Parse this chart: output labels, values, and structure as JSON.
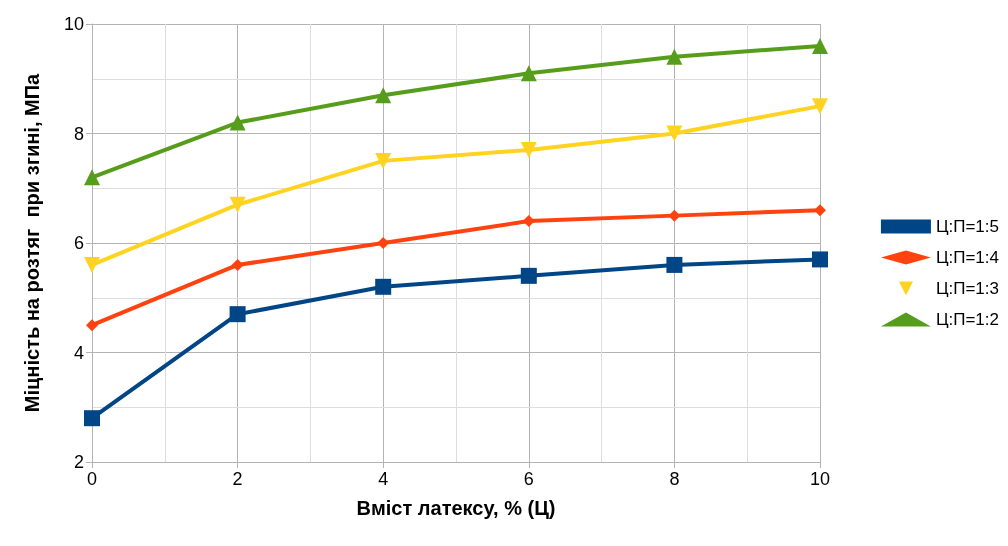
{
  "chart_data": {
    "type": "line",
    "xlabel": "Вміст латексу, % (Ц)",
    "ylabel": "Міцність на розтяг  при згині, МПа",
    "x": [
      0,
      2,
      4,
      6,
      8,
      10
    ],
    "xlim": [
      0,
      10
    ],
    "xticks": [
      0,
      2,
      4,
      6,
      8,
      10
    ],
    "ylim": [
      2,
      10
    ],
    "yticks": [
      2,
      4,
      6,
      8,
      10
    ],
    "grid": true,
    "legend": "right",
    "line_style": "solid",
    "series": [
      {
        "name": "Ц:П=1:5",
        "color": "#004586",
        "marker": "square",
        "values": [
          2.8,
          4.7,
          5.2,
          5.4,
          5.6,
          5.7
        ]
      },
      {
        "name": "Ц:П=1:4",
        "color": "#ff420e",
        "marker": "diamond",
        "values": [
          4.5,
          5.6,
          6.0,
          6.4,
          6.5,
          6.6
        ]
      },
      {
        "name": "Ц:П=1:3",
        "color": "#ffd320",
        "marker": "triangle-down",
        "values": [
          5.6,
          6.7,
          7.5,
          7.7,
          8.0,
          8.5
        ]
      },
      {
        "name": "Ц:П=1:2",
        "color": "#579d1c",
        "marker": "triangle",
        "values": [
          7.2,
          8.2,
          8.7,
          9.1,
          9.4,
          9.6
        ]
      }
    ]
  }
}
